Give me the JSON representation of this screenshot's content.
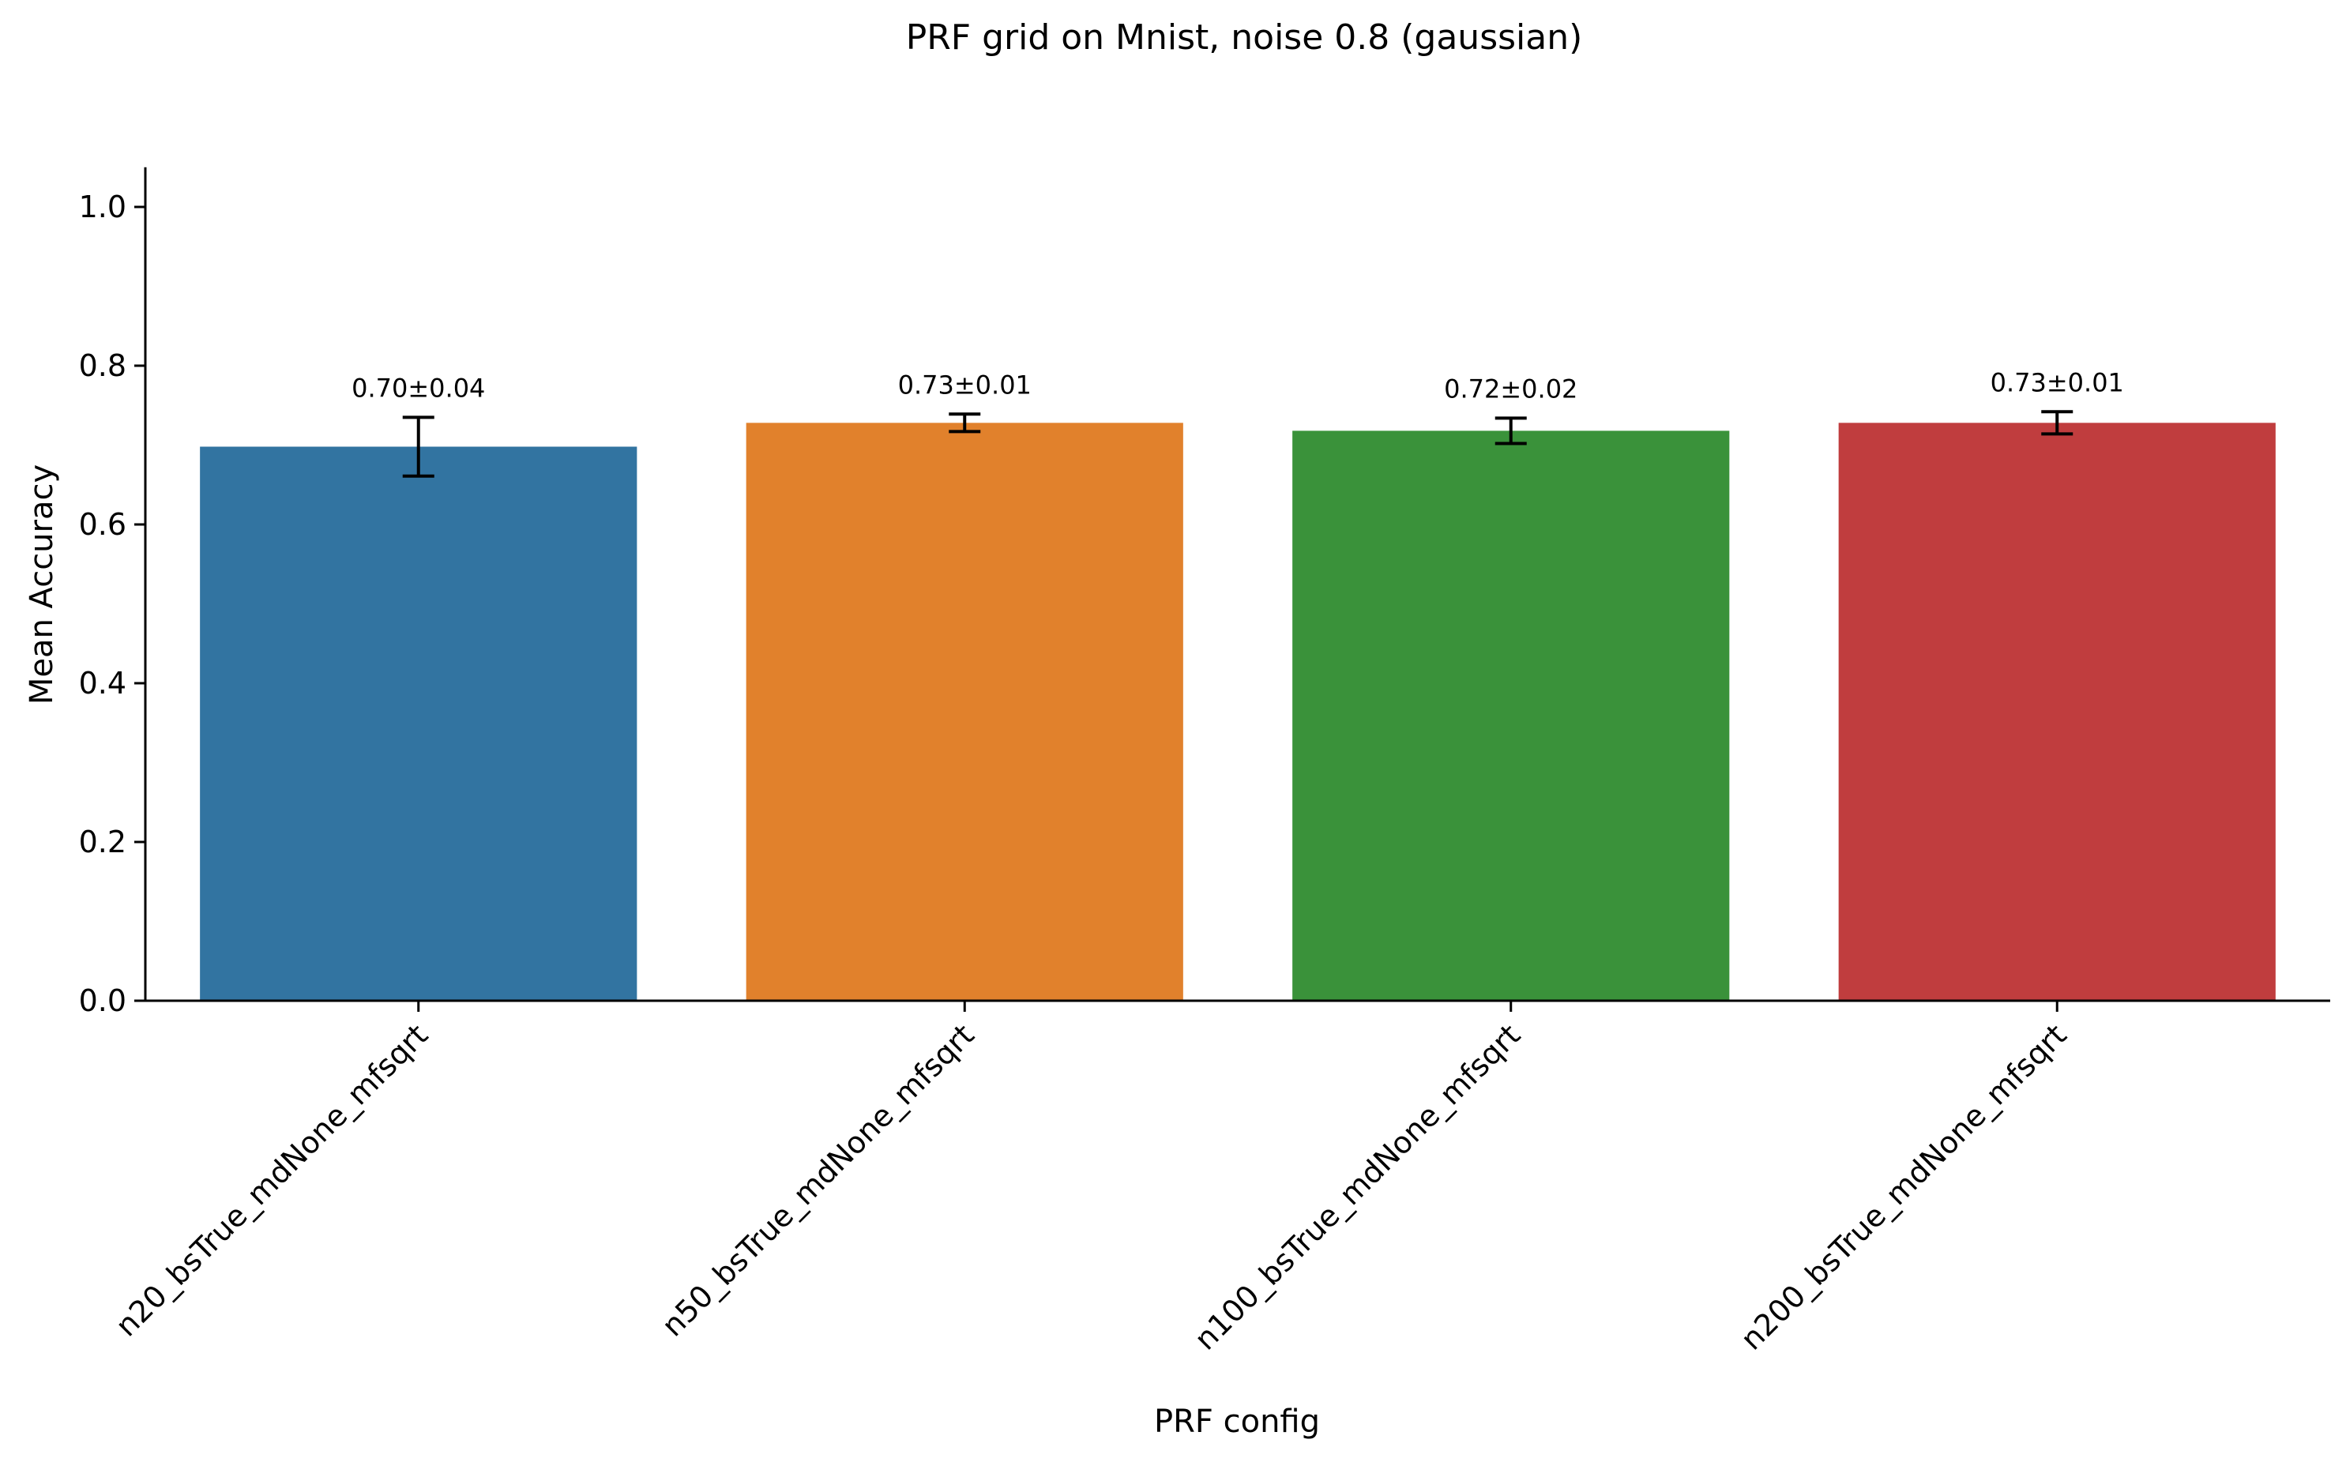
{
  "chart_data": {
    "type": "bar",
    "title": "PRF grid on Mnist, noise 0.8 (gaussian)",
    "xlabel": "PRF config",
    "ylabel": "Mean Accuracy",
    "ylim": [
      0,
      1.05
    ],
    "yticks": [
      0.0,
      0.2,
      0.4,
      0.6,
      0.8,
      1.0
    ],
    "ytick_labels": [
      "0.0",
      "0.2",
      "0.4",
      "0.6",
      "0.8",
      "1.0"
    ],
    "categories": [
      "n20_bsTrue_mdNone_mfsqrt",
      "n50_bsTrue_mdNone_mfsqrt",
      "n100_bsTrue_mdNone_mfsqrt",
      "n200_bsTrue_mdNone_mfsqrt"
    ],
    "values": [
      0.698,
      0.728,
      0.718,
      0.728
    ],
    "errors": [
      0.037,
      0.011,
      0.016,
      0.014
    ],
    "value_labels": [
      "0.70±0.04",
      "0.73±0.01",
      "0.72±0.02",
      "0.73±0.01"
    ],
    "colors": [
      "#3274a1",
      "#e1812c",
      "#3a923a",
      "#c03d3e"
    ],
    "grid": false,
    "legend": "none"
  }
}
